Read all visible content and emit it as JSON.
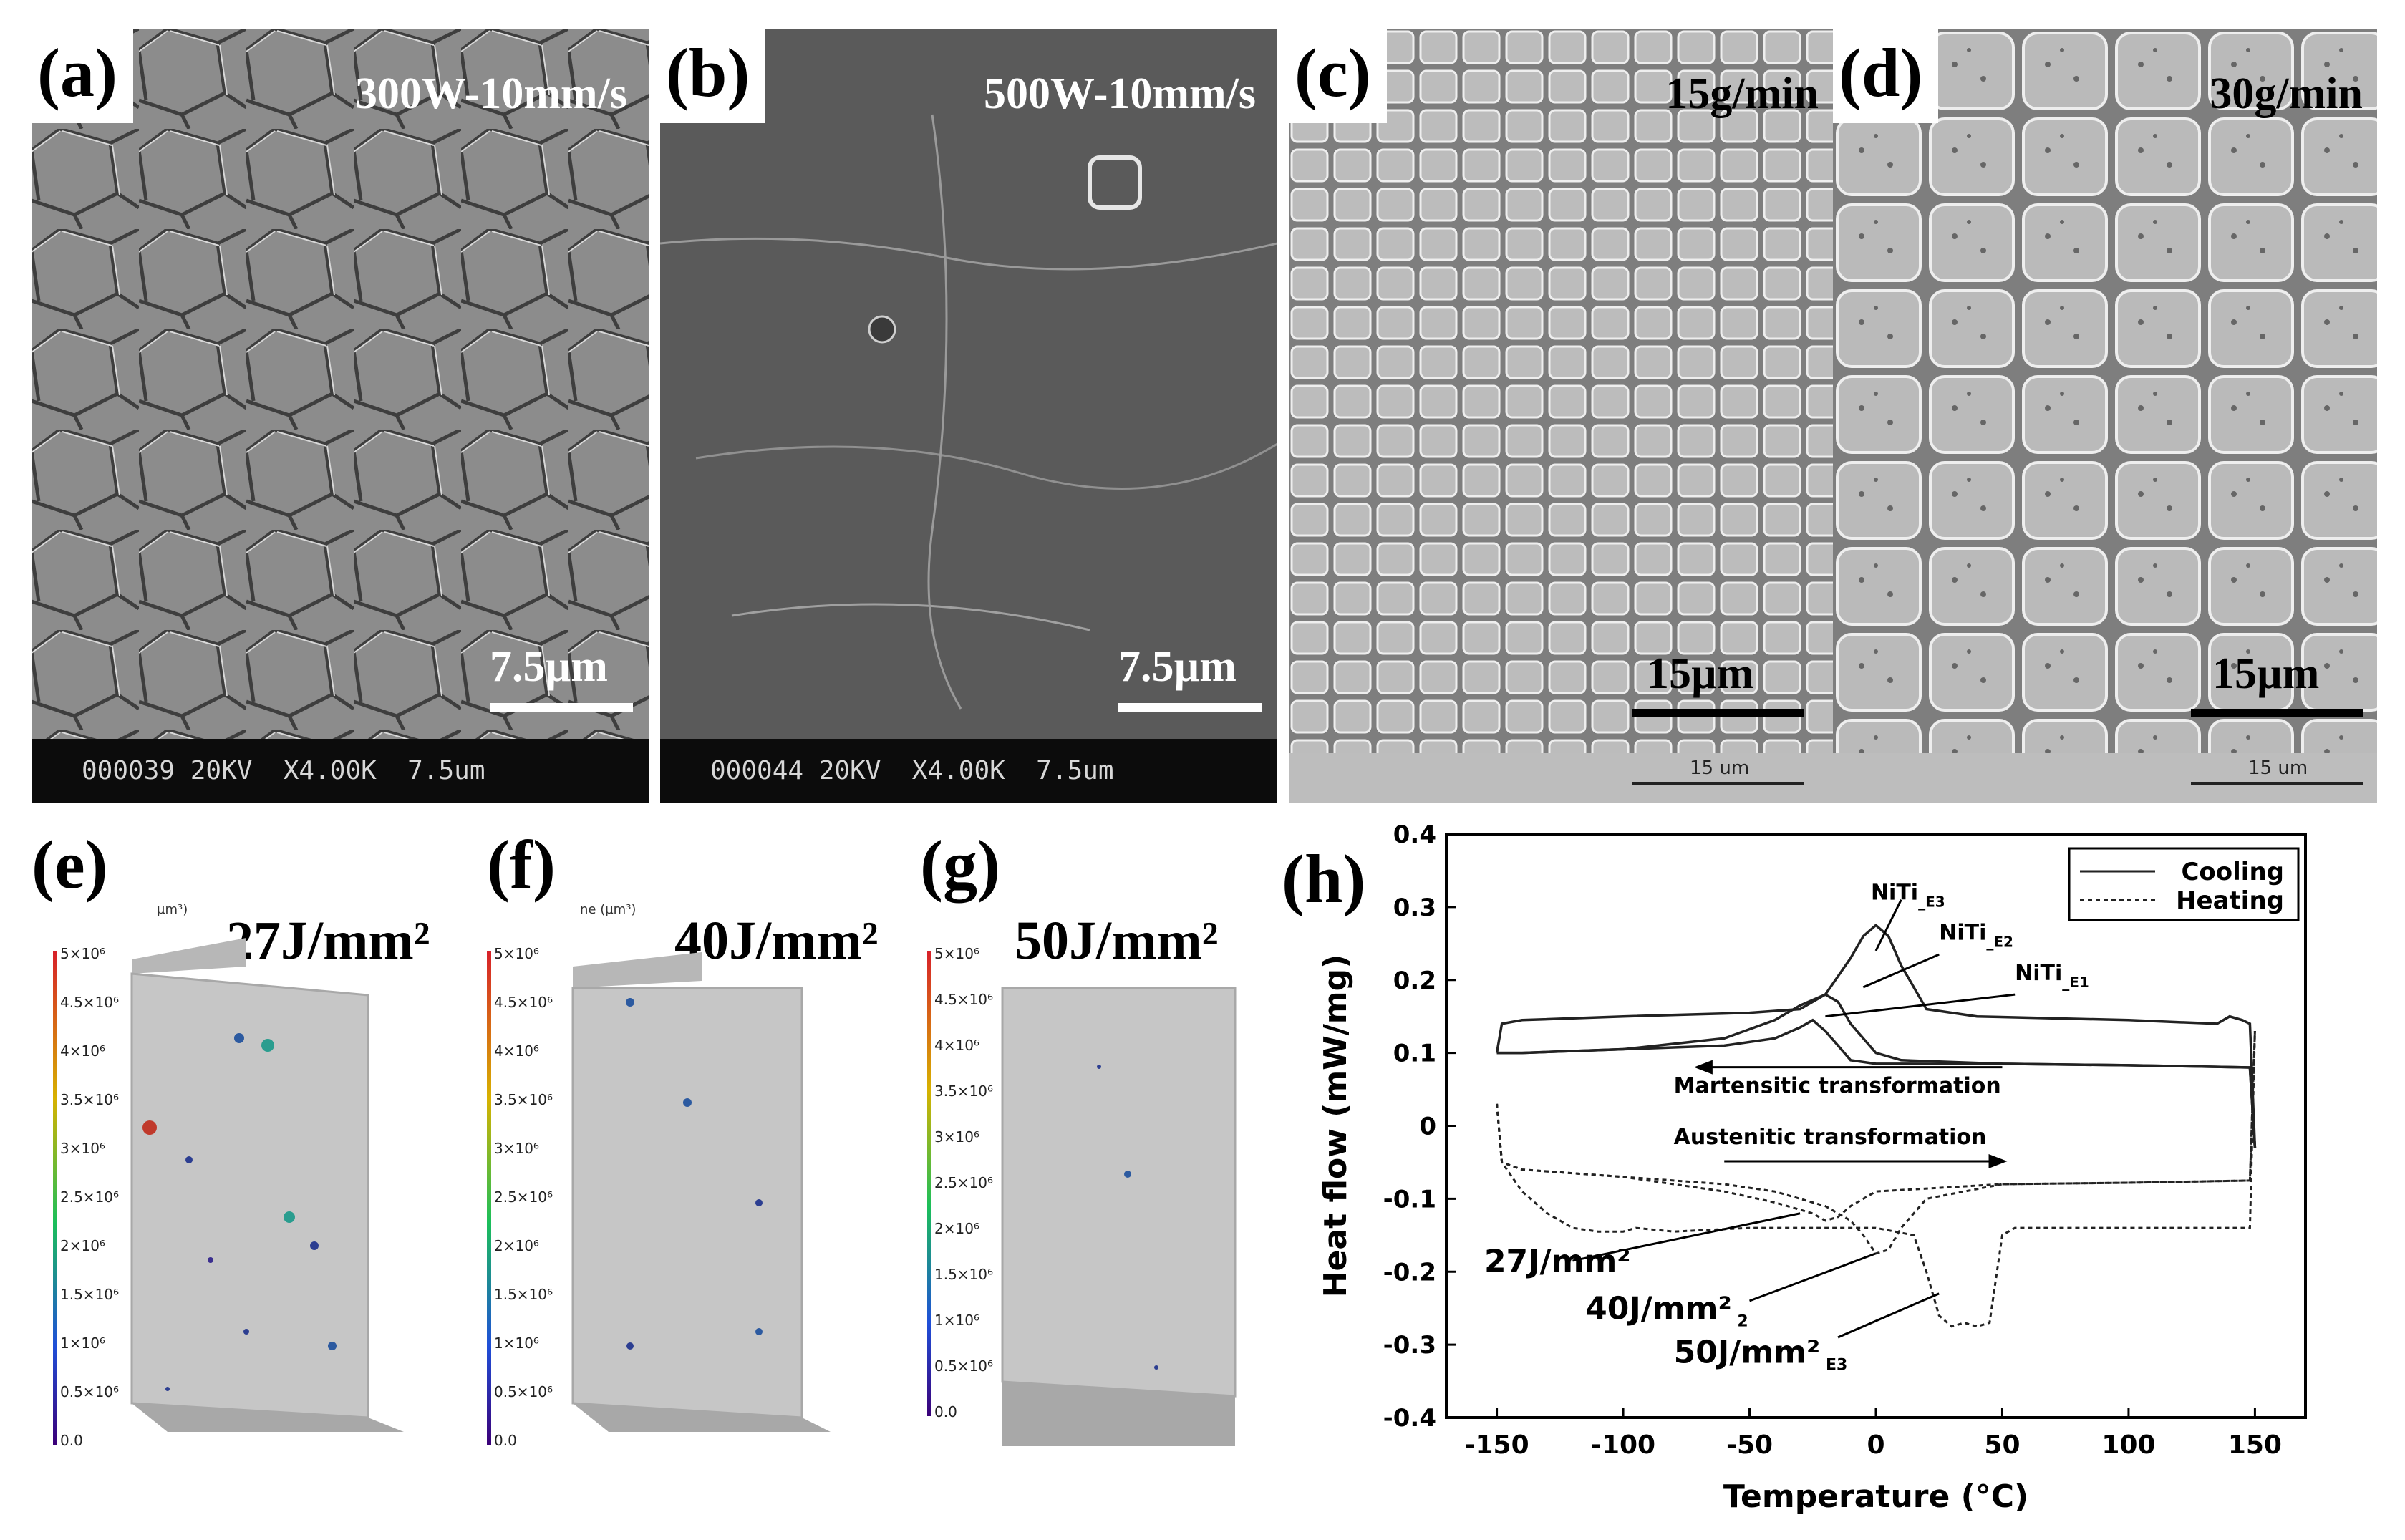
{
  "panels": {
    "a": {
      "letter": "(a)",
      "condition": "300W-10mm/s",
      "scale": "7.5µm",
      "databar": "000039 20KV  X4.00K  7.5um"
    },
    "b": {
      "letter": "(b)",
      "condition": "500W-10mm/s",
      "scale": "7.5µm",
      "databar": "000044 20KV  X4.00K  7.5um"
    },
    "c": {
      "letter": "(c)",
      "condition": "15g/min",
      "scale": "15µm",
      "bar_text": "15 um"
    },
    "d": {
      "letter": "(d)",
      "condition": "30g/min",
      "scale": "15µm",
      "bar_text": "15 um"
    },
    "e": {
      "letter": "(e)",
      "energy": "27J/mm²",
      "cb_title": "µm³)"
    },
    "f": {
      "letter": "(f)",
      "energy": "40J/mm²",
      "cb_title": "ne (µm³)"
    },
    "g": {
      "letter": "(g)",
      "energy": "50J/mm²",
      "cb_title": ""
    },
    "h": {
      "letter": "(h)"
    }
  },
  "colorbar_ticks": [
    "5×10⁶",
    "4.5×10⁶",
    "4×10⁶",
    "3.5×10⁶",
    "3×10⁶",
    "2.5×10⁶",
    "2×10⁶",
    "1.5×10⁶",
    "1×10⁶",
    "0.5×10⁶",
    "0.0"
  ],
  "chart_data": {
    "type": "line",
    "xlabel": "Temperature (°C)",
    "ylabel": "Heat flow (mW/mg)",
    "xlim": [
      -170,
      170
    ],
    "ylim": [
      -0.4,
      0.4
    ],
    "xticks": [
      -150,
      -100,
      -50,
      0,
      50,
      100,
      150
    ],
    "yticks": [
      -0.4,
      -0.3,
      -0.2,
      -0.1,
      0,
      0.1,
      0.2,
      0.3,
      0.4
    ],
    "legend": {
      "placement": "top-right",
      "entries": [
        {
          "name": "Cooling",
          "style": "solid"
        },
        {
          "name": "Heating",
          "style": "dotted"
        }
      ]
    },
    "series": [
      {
        "name": "Cooling",
        "style": "solid",
        "label": "NiTi_E1",
        "x": [
          -150,
          -148,
          -140,
          -100,
          -60,
          -40,
          -30,
          -25,
          -20,
          -15,
          -10,
          0,
          50,
          100,
          148,
          150
        ],
        "y": [
          0.1,
          0.1,
          0.1,
          0.105,
          0.11,
          0.12,
          0.135,
          0.145,
          0.13,
          0.11,
          0.09,
          0.085,
          0.085,
          0.083,
          0.08,
          -0.03
        ]
      },
      {
        "name": "Cooling",
        "style": "solid",
        "label": "NiTi_E2",
        "x": [
          -150,
          -148,
          -140,
          -100,
          -60,
          -40,
          -30,
          -20,
          -15,
          -10,
          0,
          10,
          50,
          100,
          148,
          150
        ],
        "y": [
          0.1,
          0.1,
          0.1,
          0.105,
          0.12,
          0.145,
          0.165,
          0.18,
          0.17,
          0.14,
          0.1,
          0.09,
          0.085,
          0.083,
          0.08,
          -0.03
        ]
      },
      {
        "name": "Cooling",
        "style": "solid",
        "label": "NiTi_E3",
        "x": [
          -150,
          -148,
          -140,
          -100,
          -50,
          -30,
          -20,
          -10,
          -5,
          0,
          5,
          10,
          15,
          20,
          40,
          100,
          135,
          140,
          145,
          148,
          150
        ],
        "y": [
          0.1,
          0.14,
          0.145,
          0.15,
          0.155,
          0.16,
          0.18,
          0.23,
          0.26,
          0.275,
          0.26,
          0.22,
          0.19,
          0.16,
          0.15,
          0.145,
          0.14,
          0.15,
          0.145,
          0.14,
          -0.03
        ]
      },
      {
        "name": "Heating",
        "style": "dotted",
        "label": "27J/mm²",
        "x": [
          -150,
          -148,
          -140,
          -120,
          -100,
          -80,
          -60,
          -40,
          -35,
          -30,
          -25,
          -20,
          -15,
          -10,
          0,
          50,
          100,
          148,
          150
        ],
        "y": [
          0.03,
          -0.05,
          -0.06,
          -0.065,
          -0.07,
          -0.08,
          -0.09,
          -0.105,
          -0.11,
          -0.115,
          -0.12,
          -0.13,
          -0.125,
          -0.11,
          -0.09,
          -0.08,
          -0.078,
          -0.075,
          0.13
        ]
      },
      {
        "name": "Heating",
        "style": "dotted",
        "label": "40J/mm²",
        "x": [
          -150,
          -148,
          -140,
          -100,
          -60,
          -40,
          -20,
          -10,
          -5,
          0,
          5,
          10,
          20,
          50,
          100,
          148,
          150
        ],
        "y": [
          0.03,
          -0.05,
          -0.06,
          -0.07,
          -0.08,
          -0.09,
          -0.11,
          -0.13,
          -0.15,
          -0.175,
          -0.17,
          -0.14,
          -0.1,
          -0.08,
          -0.078,
          -0.075,
          0.13
        ]
      },
      {
        "name": "Heating",
        "style": "dotted",
        "label": "50J/mm²",
        "x": [
          -150,
          -148,
          -140,
          -130,
          -120,
          -110,
          -100,
          -95,
          -80,
          -50,
          -20,
          0,
          15,
          20,
          25,
          30,
          35,
          40,
          45,
          50,
          55,
          100,
          148,
          150
        ],
        "y": [
          0.03,
          -0.05,
          -0.09,
          -0.12,
          -0.14,
          -0.145,
          -0.145,
          -0.14,
          -0.145,
          -0.14,
          -0.14,
          -0.14,
          -0.15,
          -0.2,
          -0.26,
          -0.275,
          -0.27,
          -0.275,
          -0.27,
          -0.15,
          -0.14,
          -0.14,
          -0.14,
          0.13
        ]
      }
    ],
    "annotations": [
      {
        "text": "NiTi",
        "sub": "E3",
        "x": -2,
        "y": 0.31
      },
      {
        "text": "NiTi",
        "sub": "E2",
        "x": 25,
        "y": 0.255
      },
      {
        "text": "NiTi",
        "sub": "E1",
        "x": 55,
        "y": 0.2
      },
      {
        "text": "Martensitic transformation",
        "x": -80,
        "y": 0.045,
        "arrow": "left"
      },
      {
        "text": "Austenitic transformation",
        "x": -80,
        "y": -0.025,
        "arrow": "right"
      },
      {
        "text": "27J/mm²",
        "x": -155,
        "y": -0.2,
        "big": true
      },
      {
        "text": "40J/mm²",
        "x": -115,
        "y": -0.265,
        "big": true,
        "sub": "2"
      },
      {
        "text": "50J/mm²",
        "x": -80,
        "y": -0.325,
        "big": true,
        "sub": "E3"
      }
    ]
  }
}
